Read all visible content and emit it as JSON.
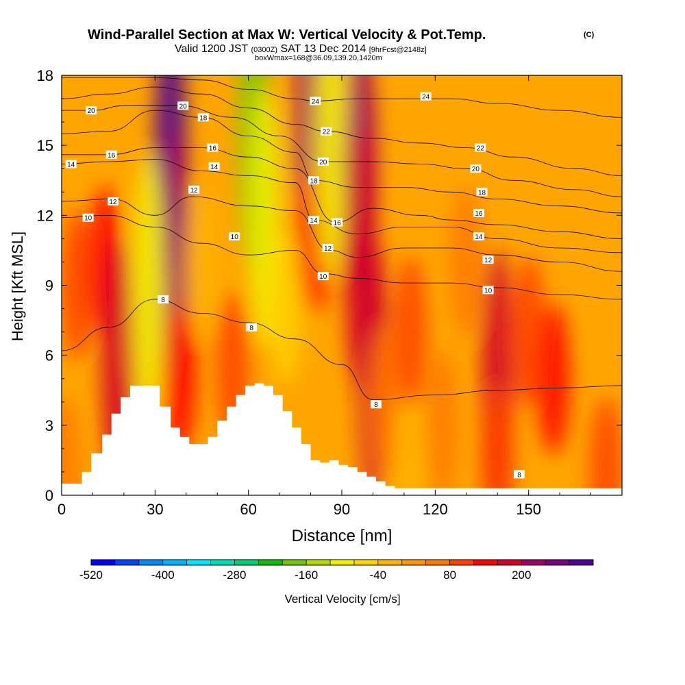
{
  "chart_data": {
    "type": "heatmap",
    "title": "Wind-Parallel Section at Max W: Vertical Velocity & Pot.Temp.",
    "copyright_mark": "(C)",
    "subtitle": "Valid 1200 JST",
    "subtitle_utc": "(0300Z)",
    "subtitle_date": "SAT 13 Dec 2014",
    "subtitle_fcst": "[9hrFcst@2148z]",
    "subtitle2": "boxWmax=168@36.09,139.20,1420m",
    "xlabel": "Distance [nm]",
    "ylabel": "Height [Kft MSL]",
    "xlim": [
      0,
      180
    ],
    "ylim": [
      0,
      18
    ],
    "x_ticks": [
      "0",
      "30",
      "60",
      "90",
      "120",
      "150"
    ],
    "y_ticks": [
      "0",
      "3",
      "6",
      "9",
      "12",
      "15",
      "18"
    ],
    "colorbar": {
      "label": "Vertical Velocity [cm/s]",
      "tick_labels": [
        "-520",
        "-400",
        "-280",
        "-160",
        "-40",
        "80",
        "200"
      ],
      "levels": [
        -520,
        -480,
        -440,
        -400,
        -360,
        -320,
        -280,
        -240,
        -200,
        -160,
        -120,
        -80,
        -40,
        0,
        40,
        80,
        120,
        160,
        200,
        240
      ],
      "colors": [
        "#0000ff",
        "#0044ff",
        "#0088ff",
        "#00b4ff",
        "#00e4ff",
        "#00dcb4",
        "#00d070",
        "#10bc10",
        "#70c800",
        "#b0dc00",
        "#f0f000",
        "#ffd200",
        "#ffb400",
        "#ff9600",
        "#ff7800",
        "#ff4000",
        "#ff0000",
        "#d2002a",
        "#a00064",
        "#780082",
        "#500094"
      ]
    },
    "vertical_velocity_cells": [
      {
        "x": 1,
        "y": 1,
        "w": 0
      },
      {
        "x": 5,
        "y": 9,
        "w": 60
      },
      {
        "x": 14,
        "y": 10,
        "w": 80
      },
      {
        "x": 18,
        "y": 5.5,
        "w": 120
      },
      {
        "x": 35,
        "y": 15,
        "w": 240
      },
      {
        "x": 36,
        "y": 10,
        "w": 160
      },
      {
        "x": 38,
        "y": 5,
        "w": 80
      },
      {
        "x": 28,
        "y": 9,
        "w": -160
      },
      {
        "x": 45,
        "y": 10,
        "w": -80
      },
      {
        "x": 55,
        "y": 5.5,
        "w": 60
      },
      {
        "x": 62,
        "y": 15,
        "w": -240
      },
      {
        "x": 65,
        "y": 12,
        "w": -160
      },
      {
        "x": 72,
        "y": 8,
        "w": -120
      },
      {
        "x": 80,
        "y": 16,
        "w": 160
      },
      {
        "x": 81,
        "y": 11,
        "w": 80
      },
      {
        "x": 86,
        "y": 15,
        "w": -160
      },
      {
        "x": 96,
        "y": 14,
        "w": 160
      },
      {
        "x": 96,
        "y": 10,
        "w": 120
      },
      {
        "x": 100,
        "y": 5.5,
        "w": 120
      },
      {
        "x": 104,
        "y": 4,
        "w": 0
      },
      {
        "x": 112,
        "y": 2,
        "w": -80
      },
      {
        "x": 112,
        "y": 7,
        "w": 40
      },
      {
        "x": 122,
        "y": 3,
        "w": 0
      },
      {
        "x": 130,
        "y": 10,
        "w": 0
      },
      {
        "x": 140,
        "y": 5,
        "w": 120
      },
      {
        "x": 140,
        "y": 1.5,
        "w": 40
      },
      {
        "x": 150,
        "y": 7,
        "w": 40
      },
      {
        "x": 158,
        "y": 5,
        "w": 80
      },
      {
        "x": 175,
        "y": 1,
        "w": 40
      }
    ],
    "terrain_kft": [
      {
        "x": 0,
        "z": 0.5
      },
      {
        "x": 2,
        "z": 0.5
      },
      {
        "x": 3.5,
        "z": 0.5
      },
      {
        "x": 6.5,
        "z": 1
      },
      {
        "x": 9.5,
        "z": 1.8
      },
      {
        "x": 13,
        "z": 2.6
      },
      {
        "x": 16,
        "z": 3.5
      },
      {
        "x": 19,
        "z": 4.2
      },
      {
        "x": 22,
        "z": 4.7
      },
      {
        "x": 25,
        "z": 4.7
      },
      {
        "x": 28.5,
        "z": 4.7
      },
      {
        "x": 31.5,
        "z": 3.8
      },
      {
        "x": 35,
        "z": 2.9
      },
      {
        "x": 38,
        "z": 2.5
      },
      {
        "x": 41,
        "z": 2.2
      },
      {
        "x": 44,
        "z": 2.2
      },
      {
        "x": 47,
        "z": 2.5
      },
      {
        "x": 50,
        "z": 3.2
      },
      {
        "x": 53,
        "z": 3.8
      },
      {
        "x": 56,
        "z": 4.3
      },
      {
        "x": 59,
        "z": 4.7
      },
      {
        "x": 62,
        "z": 4.8
      },
      {
        "x": 65,
        "z": 4.7
      },
      {
        "x": 68,
        "z": 4.3
      },
      {
        "x": 71,
        "z": 3.6
      },
      {
        "x": 74,
        "z": 2.9
      },
      {
        "x": 77,
        "z": 2.2
      },
      {
        "x": 80,
        "z": 1.5
      },
      {
        "x": 83,
        "z": 1.4
      },
      {
        "x": 86,
        "z": 1.5
      },
      {
        "x": 89,
        "z": 1.3
      },
      {
        "x": 92,
        "z": 1.2
      },
      {
        "x": 95,
        "z": 1.0
      },
      {
        "x": 98,
        "z": 0.8
      },
      {
        "x": 101,
        "z": 0.6
      },
      {
        "x": 104,
        "z": 0.4
      },
      {
        "x": 107,
        "z": 0.3
      },
      {
        "x": 110,
        "z": 0.3
      },
      {
        "x": 113,
        "z": 0.3
      },
      {
        "x": 180,
        "z": 0.3
      }
    ],
    "theta_contours": [
      {
        "label": "8",
        "points": [
          [
            0,
            6.2
          ],
          [
            15,
            7.2
          ],
          [
            30,
            8.4
          ],
          [
            45,
            7.8
          ],
          [
            60,
            7.4
          ],
          [
            75,
            6.7
          ],
          [
            90,
            5.6
          ],
          [
            100,
            4.1
          ],
          [
            120,
            4.3
          ],
          [
            140,
            4.5
          ],
          [
            160,
            4.6
          ],
          [
            180,
            4.7
          ]
        ],
        "labels_at": [
          [
            32.6,
            8.4
          ],
          [
            61.0,
            7.2
          ],
          [
            101.0,
            3.9
          ],
          [
            147.0,
            0.9
          ]
        ]
      },
      {
        "label": "10",
        "points": [
          [
            0,
            11.9
          ],
          [
            15,
            12.0
          ],
          [
            30,
            11.5
          ],
          [
            45,
            10.8
          ],
          [
            60,
            10.3
          ],
          [
            75,
            10.5
          ],
          [
            84,
            9.5
          ],
          [
            95,
            9.3
          ],
          [
            110,
            9.1
          ],
          [
            125,
            9.1
          ],
          [
            140,
            8.9
          ],
          [
            160,
            8.6
          ],
          [
            180,
            8.4
          ]
        ],
        "labels_at": [
          [
            8.5,
            11.9
          ],
          [
            55.5,
            11.1
          ],
          [
            84.0,
            9.4
          ],
          [
            137.0,
            8.8
          ]
        ]
      },
      {
        "label": "12",
        "points": [
          [
            0,
            12.6
          ],
          [
            16,
            12.7
          ],
          [
            30,
            12.0
          ],
          [
            42,
            12.8
          ],
          [
            60,
            12.4
          ],
          [
            75,
            12.2
          ],
          [
            86,
            10.5
          ],
          [
            95,
            10.2
          ],
          [
            110,
            10.6
          ],
          [
            125,
            10.6
          ],
          [
            140,
            10.3
          ],
          [
            160,
            10.0
          ],
          [
            180,
            9.6
          ]
        ],
        "labels_at": [
          [
            16.5,
            12.6
          ],
          [
            42.5,
            13.1
          ],
          [
            85.5,
            10.6
          ],
          [
            137.0,
            10.1
          ]
        ]
      },
      {
        "label": "14",
        "points": [
          [
            0,
            14.2
          ],
          [
            15,
            14.3
          ],
          [
            30,
            14.4
          ],
          [
            45,
            13.9
          ],
          [
            60,
            13.7
          ],
          [
            75,
            13.4
          ],
          [
            81,
            11.8
          ],
          [
            95,
            11.2
          ],
          [
            110,
            11.5
          ],
          [
            125,
            11.5
          ],
          [
            140,
            11.0
          ],
          [
            160,
            10.6
          ],
          [
            180,
            10.4
          ]
        ],
        "labels_at": [
          [
            3.0,
            14.2
          ],
          [
            49.0,
            14.1
          ],
          [
            81.0,
            11.8
          ],
          [
            134.0,
            11.1
          ]
        ]
      },
      {
        "label": "16",
        "points": [
          [
            0,
            14.6
          ],
          [
            15,
            14.6
          ],
          [
            30,
            14.9
          ],
          [
            45,
            14.9
          ],
          [
            60,
            14.5
          ],
          [
            75,
            14.0
          ],
          [
            88,
            11.7
          ],
          [
            100,
            12.3
          ],
          [
            115,
            12.0
          ],
          [
            125,
            11.8
          ],
          [
            140,
            11.6
          ],
          [
            160,
            11.3
          ],
          [
            180,
            11.0
          ]
        ],
        "labels_at": [
          [
            16.0,
            14.6
          ],
          [
            48.5,
            14.9
          ],
          [
            88.5,
            11.7
          ],
          [
            134.0,
            12.1
          ]
        ]
      },
      {
        "label": "18",
        "points": [
          [
            0,
            15.5
          ],
          [
            15,
            15.6
          ],
          [
            30,
            16.5
          ],
          [
            45,
            16.2
          ],
          [
            60,
            15.4
          ],
          [
            75,
            14.7
          ],
          [
            81,
            13.5
          ],
          [
            95,
            13.2
          ],
          [
            110,
            13.2
          ],
          [
            125,
            13.0
          ],
          [
            140,
            12.7
          ],
          [
            160,
            12.4
          ],
          [
            180,
            12.1
          ]
        ],
        "labels_at": [
          [
            45.5,
            16.2
          ],
          [
            81.0,
            13.5
          ],
          [
            135.0,
            13.0
          ]
        ]
      },
      {
        "label": "20",
        "points": [
          [
            0,
            16.5
          ],
          [
            10,
            16.5
          ],
          [
            20,
            16.7
          ],
          [
            38,
            16.7
          ],
          [
            55,
            16.2
          ],
          [
            70,
            15.4
          ],
          [
            84,
            14.3
          ],
          [
            100,
            14.3
          ],
          [
            115,
            14.2
          ],
          [
            130,
            14.0
          ],
          [
            145,
            13.5
          ],
          [
            165,
            13.1
          ],
          [
            180,
            12.8
          ]
        ],
        "labels_at": [
          [
            9.5,
            16.5
          ],
          [
            39.0,
            16.7
          ],
          [
            84.0,
            14.3
          ],
          [
            133.0,
            14.0
          ]
        ]
      },
      {
        "label": "22",
        "points": [
          [
            0,
            17.0
          ],
          [
            15,
            17.2
          ],
          [
            30,
            17.5
          ],
          [
            45,
            17.2
          ],
          [
            60,
            16.6
          ],
          [
            75,
            15.9
          ],
          [
            85,
            15.6
          ],
          [
            100,
            15.3
          ],
          [
            115,
            15.1
          ],
          [
            130,
            14.9
          ],
          [
            145,
            14.5
          ],
          [
            165,
            14.0
          ],
          [
            180,
            13.7
          ]
        ],
        "labels_at": [
          [
            85.0,
            15.6
          ],
          [
            134.5,
            14.9
          ]
        ]
      },
      {
        "label": "24",
        "points": [
          [
            0,
            17.9
          ],
          [
            15,
            17.9
          ],
          [
            30,
            17.9
          ],
          [
            45,
            17.8
          ],
          [
            60,
            17.4
          ],
          [
            75,
            17.0
          ],
          [
            81,
            16.9
          ],
          [
            95,
            17.0
          ],
          [
            110,
            17.0
          ],
          [
            125,
            17.0
          ],
          [
            140,
            16.8
          ],
          [
            160,
            16.5
          ],
          [
            180,
            16.2
          ]
        ],
        "labels_at": [
          [
            81.5,
            16.9
          ],
          [
            117.0,
            17.1
          ]
        ]
      }
    ]
  }
}
